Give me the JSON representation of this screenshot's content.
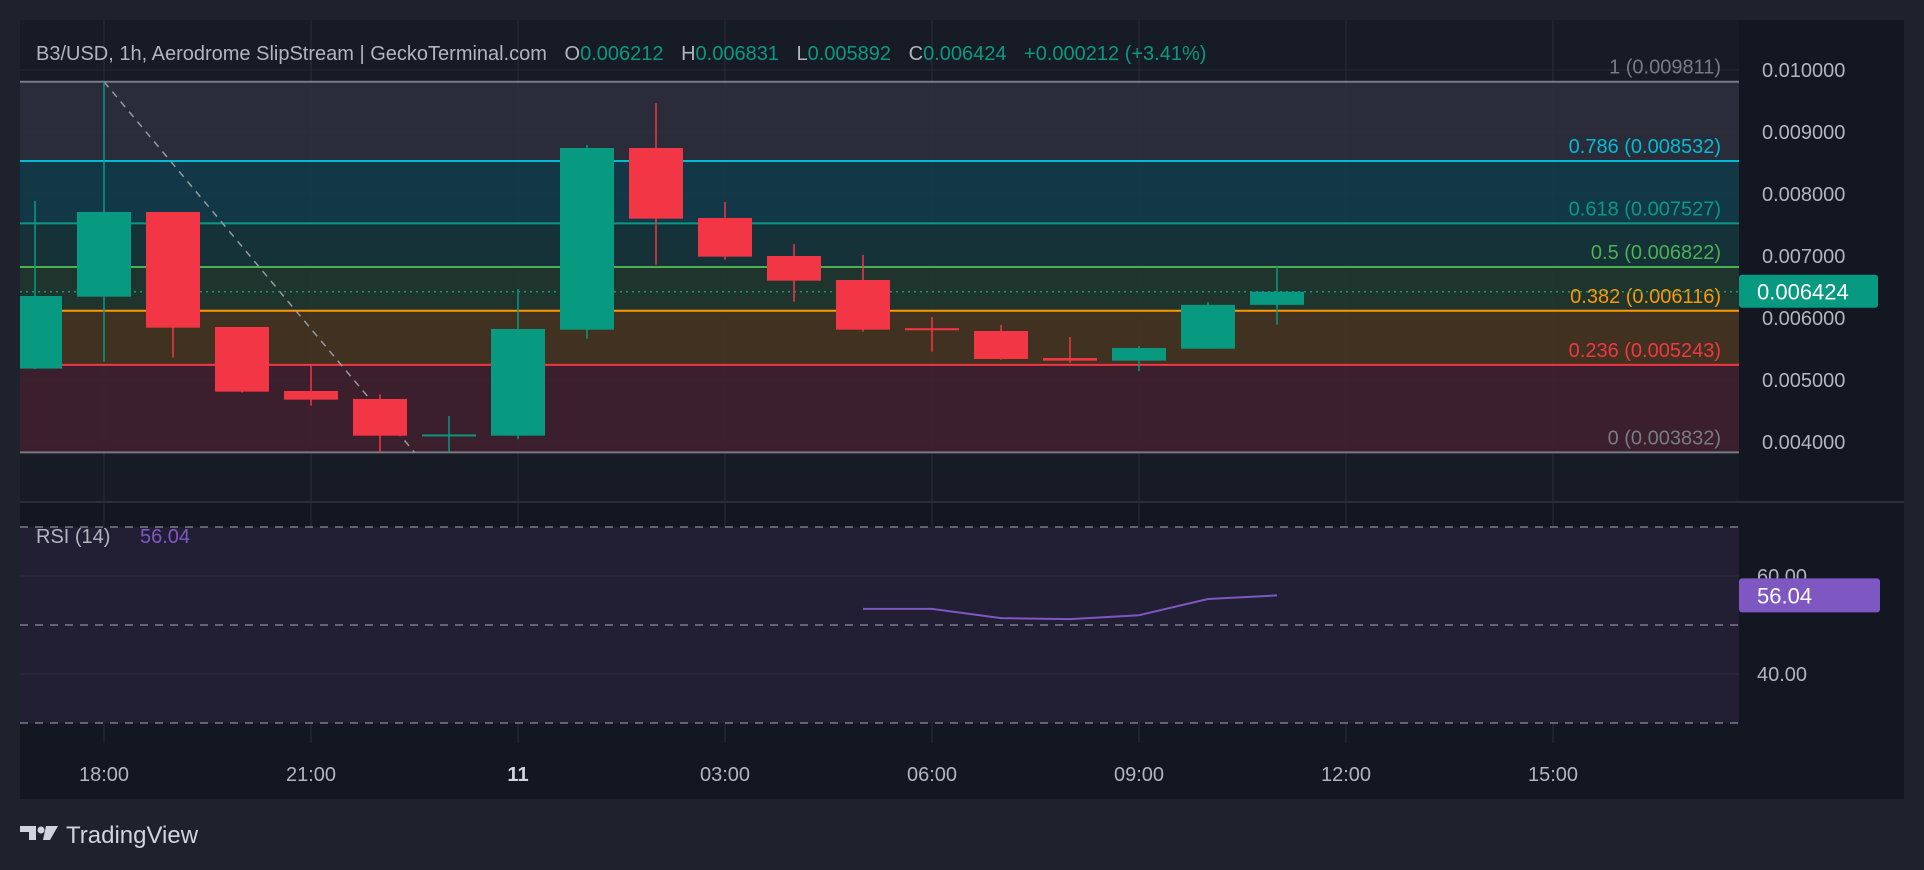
{
  "header": {
    "symbol_title": "B3/USD, 1h, Aerodrome SlipStream | GeckoTerminal.com",
    "o_label": "O",
    "o_value": "0.006212",
    "h_label": "H",
    "h_value": "0.006831",
    "l_label": "L",
    "l_value": "0.005892",
    "c_label": "C",
    "c_value": "0.006424",
    "change": "+0.000212 (+3.41%)"
  },
  "footer": {
    "brand": "TradingView"
  },
  "colors": {
    "up": "#089981",
    "down": "#f23645",
    "rsi": "#7e57c2",
    "background": "#131722",
    "frame": "#1e222d",
    "text": "#b2b5be"
  },
  "chart_data": [
    {
      "type": "candlestick",
      "title": "B3/USD, 1h, Aerodrome SlipStream | GeckoTerminal.com",
      "x_tick_labels": [
        "18:00",
        "21:00",
        "11",
        "03:00",
        "06:00",
        "09:00",
        "12:00",
        "15:00"
      ],
      "y_tick_labels": [
        "0.010000",
        "0.009000",
        "0.008000",
        "0.007000",
        "0.006000",
        "0.005000",
        "0.004000"
      ],
      "ylim": [
        0.00365,
        0.01015
      ],
      "grid": true,
      "last_price_label": "0.006424",
      "candles": [
        {
          "time": "17:00",
          "o": 0.005184,
          "h": 0.007887,
          "l": 0.005177,
          "c": 0.006355
        },
        {
          "time": "18:00",
          "o": 0.006344,
          "h": 0.009811,
          "l": 0.005295,
          "c": 0.00771
        },
        {
          "time": "19:00",
          "o": 0.00771,
          "h": 0.00771,
          "l": 0.00536,
          "c": 0.005844
        },
        {
          "time": "20:00",
          "o": 0.005855,
          "h": 0.005855,
          "l": 0.004796,
          "c": 0.004812
        },
        {
          "time": "21:00",
          "o": 0.004823,
          "h": 0.005226,
          "l": 0.004586,
          "c": 0.004683
        },
        {
          "time": "22:00",
          "o": 0.004694,
          "h": 0.004769,
          "l": 0.003832,
          "c": 0.004102
        },
        {
          "time": "23:00",
          "o": 0.00411,
          "h": 0.004419,
          "l": 0.003832,
          "c": 0.004122
        },
        {
          "time": "00:00",
          "o": 0.004102,
          "h": 0.006468,
          "l": 0.004044,
          "c": 0.005823
        },
        {
          "time": "01:00",
          "o": 0.005812,
          "h": 0.00879,
          "l": 0.005667,
          "c": 0.008742
        },
        {
          "time": "02:00",
          "o": 0.008742,
          "h": 0.009468,
          "l": 0.00686,
          "c": 0.007602
        },
        {
          "time": "03:00",
          "o": 0.007613,
          "h": 0.007871,
          "l": 0.00694,
          "c": 0.006989
        },
        {
          "time": "04:00",
          "o": 0.007,
          "h": 0.007194,
          "l": 0.006263,
          "c": 0.006602
        },
        {
          "time": "05:00",
          "o": 0.006613,
          "h": 0.007016,
          "l": 0.005779,
          "c": 0.005812
        },
        {
          "time": "06:00",
          "o": 0.005835,
          "h": 0.006016,
          "l": 0.005457,
          "c": 0.005822
        },
        {
          "time": "07:00",
          "o": 0.00579,
          "h": 0.005887,
          "l": 0.005328,
          "c": 0.005339
        },
        {
          "time": "08:00",
          "o": 0.005355,
          "h": 0.005694,
          "l": 0.005279,
          "c": 0.005312
        },
        {
          "time": "09:00",
          "o": 0.005312,
          "h": 0.005548,
          "l": 0.005145,
          "c": 0.005516
        },
        {
          "time": "10:00",
          "o": 0.005505,
          "h": 0.006258,
          "l": 0.005505,
          "c": 0.006212
        },
        {
          "time": "11:00",
          "o": 0.006212,
          "h": 0.006831,
          "l": 0.005892,
          "c": 0.006424
        }
      ],
      "fibonacci": {
        "levels": [
          {
            "ratio": "1",
            "price": 0.009811,
            "label": "1 (0.009811)",
            "color": "#787b86",
            "fill": "#2c2f3b"
          },
          {
            "ratio": "0.786",
            "price": 0.008532,
            "label": "0.786 (0.008532)",
            "color": "#00bcd4",
            "fill": "#123b4a"
          },
          {
            "ratio": "0.618",
            "price": 0.007527,
            "label": "0.618 (0.007527)",
            "color": "#089981",
            "fill": "#16343a"
          },
          {
            "ratio": "0.5",
            "price": 0.006822,
            "label": "0.5 (0.006822)",
            "color": "#4caf50",
            "fill": "#22362f"
          },
          {
            "ratio": "0.382",
            "price": 0.006116,
            "label": "0.382 (0.006116)",
            "color": "#ff9800",
            "fill": "#45331f"
          },
          {
            "ratio": "0.236",
            "price": 0.005243,
            "label": "0.236 (0.005243)",
            "color": "#f23645",
            "fill": "#3f1f2c"
          },
          {
            "ratio": "0",
            "price": 0.003832,
            "label": "0 (0.003832)",
            "color": "#787b86",
            "fill": null
          }
        ],
        "trend_from": {
          "time": "18:00",
          "price": 0.009811
        },
        "trend_to": {
          "time": "22:30",
          "price": 0.003832
        }
      }
    },
    {
      "type": "line",
      "title": "RSI (14)",
      "current_value": "56.04",
      "y_tick_labels": [
        "60.00",
        "40.00"
      ],
      "bands": [
        70,
        50,
        30
      ],
      "ylim": [
        25,
        78
      ],
      "x": [
        "05:00",
        "06:00",
        "07:00",
        "08:00",
        "09:00",
        "10:00",
        "11:00"
      ],
      "values": [
        53.3,
        53.3,
        51.4,
        51.2,
        52.0,
        55.3,
        56.04
      ]
    }
  ]
}
